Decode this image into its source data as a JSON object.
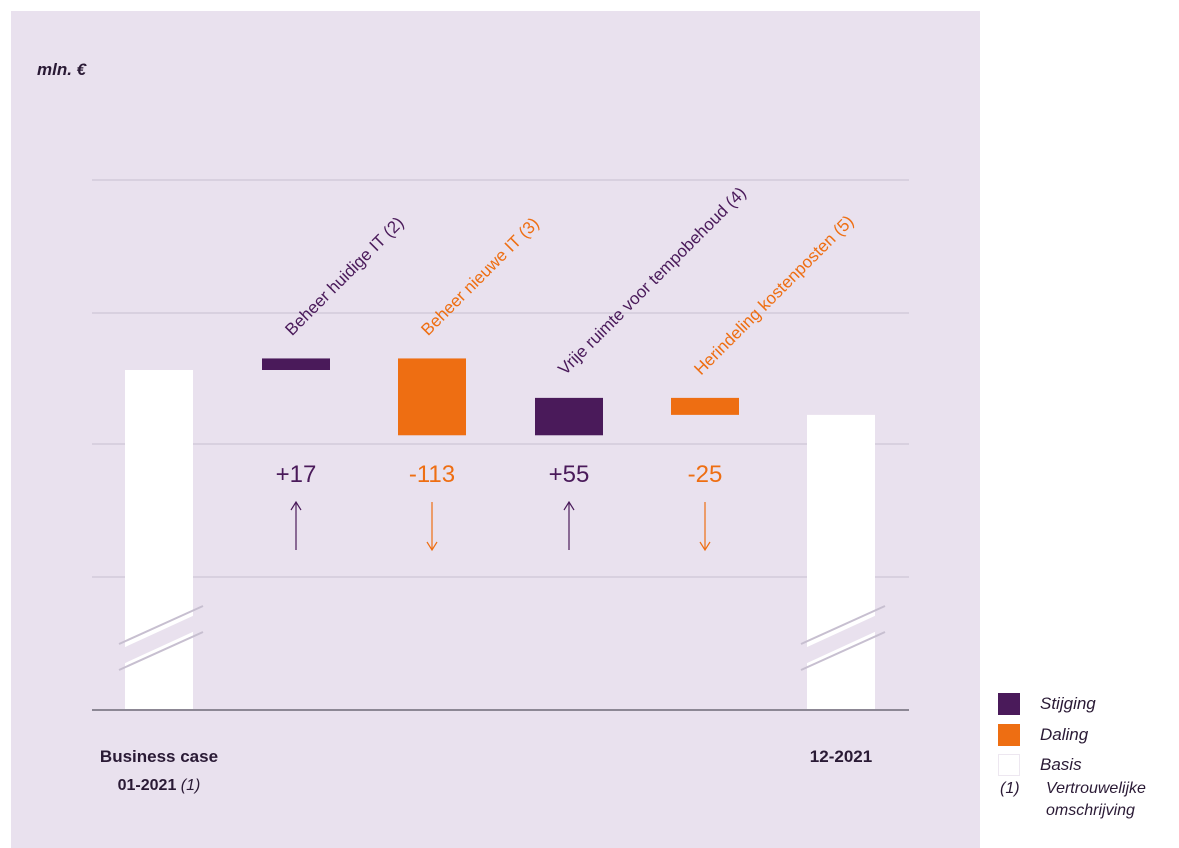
{
  "chart_data": {
    "type": "waterfall",
    "unit_label": "mln. €",
    "colors": {
      "increase": "#4a1a5a",
      "decrease": "#ee6e12",
      "basis": "#ffffff",
      "background": "#e9e1ee",
      "grid": "#c7bfd0",
      "axis": "#8c8794"
    },
    "y_axis_scale": "broken",
    "steps": [
      {
        "kind": "basis",
        "label_line1": "Business case",
        "label_line2_bold": "01-2021",
        "label_line2_note": "(1)",
        "value": null,
        "break": true
      },
      {
        "kind": "increase",
        "label": "Beheer huidige IT (2)",
        "value": 17,
        "value_label": "+17",
        "arrow": "up"
      },
      {
        "kind": "decrease",
        "label": "Beheer nieuwe IT (3)",
        "value": -113,
        "value_label": "-113",
        "arrow": "down"
      },
      {
        "kind": "increase",
        "label": "Vrije ruimte voor tempobehoud (4)",
        "value": 55,
        "value_label": "+55",
        "arrow": "up"
      },
      {
        "kind": "decrease",
        "label": "Herindeling kostenposten (5)",
        "value": -25,
        "value_label": "-25",
        "arrow": "down"
      },
      {
        "kind": "basis",
        "label_line1": "12-2021",
        "value": null,
        "break": true
      }
    ],
    "legend": [
      {
        "key": "increase",
        "label": "Stijging"
      },
      {
        "key": "decrease",
        "label": "Daling"
      },
      {
        "key": "basis",
        "label": "Basis"
      }
    ],
    "footnote": {
      "marker": "(1)",
      "text": "Vertrouwelijke omschrijving"
    }
  }
}
